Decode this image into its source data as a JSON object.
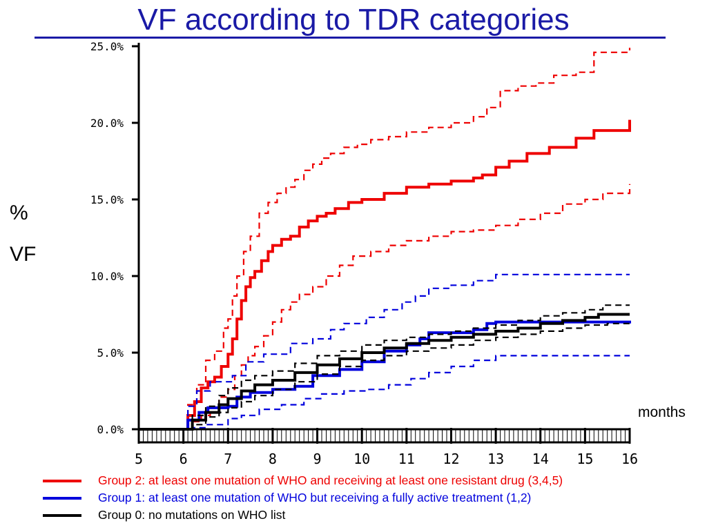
{
  "page": {
    "title": "VF according to TDR categories",
    "y_symbol": "%",
    "y_label": "VF",
    "x_unit": "months"
  },
  "colors": {
    "title": "#1a1aa6",
    "group2": "#ee0000",
    "group1": "#0000dd",
    "group0": "#000000"
  },
  "legend": [
    {
      "label": "Group 2: at least one mutation of WHO and receiving at least one resistant drug (3,4,5)",
      "color": "#ee0000"
    },
    {
      "label": "Group 1: at least one mutation of WHO but receiving a fully active treatment (1,2)",
      "color": "#0000dd"
    },
    {
      "label": "Group 0: no mutations on WHO list",
      "color": "#000000"
    }
  ],
  "chart_data": {
    "type": "line",
    "xlabel": "months",
    "ylabel": "% VF",
    "xlim": [
      5,
      16
    ],
    "ylim": [
      0,
      25
    ],
    "x_ticks": [
      5,
      6,
      7,
      8,
      9,
      10,
      11,
      12,
      13,
      14,
      15,
      16
    ],
    "x_tick_labels": [
      "5",
      "6",
      "7",
      "8",
      "9",
      "10",
      "11",
      "12",
      "13",
      "14",
      "15",
      "16"
    ],
    "y_ticks": [
      0,
      5,
      10,
      15,
      20,
      25
    ],
    "y_tick_labels": [
      "0.0%",
      "5.0%",
      "10.0%",
      "15.0%",
      "20.0%",
      "25.0%"
    ],
    "grid": false,
    "series": [
      {
        "name": "Group 2: at least one mutation of WHO and receiving at least one resistant drug (3,4,5)",
        "group": "group2",
        "kind": "estimate",
        "x": [
          5,
          6.0,
          6.1,
          6.25,
          6.4,
          6.55,
          6.7,
          6.85,
          7.0,
          7.1,
          7.2,
          7.3,
          7.4,
          7.5,
          7.6,
          7.75,
          7.9,
          8.0,
          8.2,
          8.4,
          8.6,
          8.8,
          9.0,
          9.2,
          9.4,
          9.7,
          10.0,
          10.5,
          11.0,
          11.5,
          12.0,
          12.5,
          12.7,
          13.0,
          13.3,
          13.7,
          14.2,
          14.8,
          15.2,
          16.0
        ],
        "y": [
          0,
          0,
          0.9,
          1.8,
          2.7,
          3.1,
          3.4,
          4.1,
          4.9,
          5.9,
          7.2,
          8.4,
          9.3,
          9.9,
          10.3,
          11.0,
          11.6,
          12.0,
          12.4,
          12.6,
          13.2,
          13.6,
          13.9,
          14.1,
          14.4,
          14.8,
          15.0,
          15.4,
          15.8,
          16.0,
          16.2,
          16.4,
          16.6,
          17.1,
          17.5,
          18.0,
          18.4,
          19.0,
          19.5,
          20.2
        ]
      },
      {
        "name": "",
        "group": "group2",
        "kind": "ci",
        "x": [
          5,
          6.0,
          6.1,
          6.3,
          6.5,
          6.7,
          6.9,
          7.0,
          7.1,
          7.2,
          7.35,
          7.5,
          7.7,
          7.9,
          8.1,
          8.3,
          8.5,
          8.7,
          8.9,
          9.1,
          9.3,
          9.6,
          9.9,
          10.2,
          10.6,
          11.0,
          11.5,
          12.0,
          12.5,
          12.8,
          13.1,
          13.5,
          13.9,
          14.3,
          14.8,
          15.2,
          16.0
        ],
        "y": [
          0,
          0,
          1.6,
          2.9,
          4.5,
          5.1,
          6.6,
          7.2,
          8.7,
          10.0,
          11.6,
          12.6,
          14.1,
          14.8,
          15.4,
          15.8,
          16.3,
          16.9,
          17.3,
          17.7,
          18.0,
          18.4,
          18.6,
          18.9,
          19.1,
          19.4,
          19.7,
          20.0,
          20.4,
          21.0,
          22.1,
          22.4,
          22.6,
          23.1,
          23.3,
          24.6,
          24.9
        ]
      },
      {
        "name": "",
        "group": "group2",
        "kind": "ci",
        "x": [
          5,
          6.0,
          6.2,
          6.4,
          6.6,
          6.8,
          7.0,
          7.15,
          7.3,
          7.45,
          7.6,
          7.8,
          8.0,
          8.2,
          8.4,
          8.6,
          8.9,
          9.2,
          9.5,
          9.8,
          10.2,
          10.6,
          11.0,
          11.5,
          12.0,
          12.5,
          13.0,
          13.5,
          14.0,
          14.5,
          15.0,
          15.4,
          16.0
        ],
        "y": [
          0,
          0,
          0.5,
          0.9,
          1.4,
          2.1,
          2.6,
          3.5,
          4.2,
          4.8,
          5.4,
          6.1,
          7.0,
          7.8,
          8.3,
          8.8,
          9.3,
          10.0,
          10.7,
          11.3,
          11.6,
          12.0,
          12.3,
          12.6,
          12.9,
          13.0,
          13.3,
          13.7,
          14.1,
          14.7,
          15.0,
          15.4,
          16.0
        ]
      },
      {
        "name": "Group 1: at least one mutation of WHO but receiving a fully active treatment (1,2)",
        "group": "group1",
        "kind": "estimate",
        "x": [
          5,
          6.0,
          6.1,
          6.35,
          6.55,
          7.0,
          7.2,
          7.5,
          8.0,
          8.5,
          8.9,
          9.5,
          10.0,
          10.5,
          11.0,
          11.3,
          11.5,
          12.0,
          12.5,
          12.8,
          13.0,
          14.0,
          15.0,
          16.0
        ],
        "y": [
          0,
          0,
          0.6,
          1.1,
          1.4,
          1.5,
          2.1,
          2.4,
          2.6,
          2.8,
          3.5,
          3.9,
          4.4,
          5.1,
          5.5,
          5.9,
          6.3,
          6.3,
          6.5,
          6.9,
          7.0,
          7.0,
          7.0,
          6.9
        ]
      },
      {
        "name": "",
        "group": "group1",
        "kind": "ci",
        "x": [
          5,
          6.0,
          6.1,
          6.3,
          6.6,
          7.1,
          7.4,
          7.8,
          8.4,
          8.9,
          9.3,
          9.6,
          10.1,
          10.5,
          10.9,
          11.2,
          11.5,
          12.0,
          12.5,
          13.0,
          14.0,
          15.0,
          16.0
        ],
        "y": [
          0,
          0,
          1.5,
          2.5,
          3.1,
          3.5,
          4.4,
          4.9,
          5.6,
          5.9,
          6.5,
          6.9,
          7.3,
          7.8,
          8.3,
          8.7,
          9.2,
          9.4,
          9.7,
          10.1,
          10.1,
          10.1,
          10.1
        ]
      },
      {
        "name": "",
        "group": "group1",
        "kind": "ci",
        "x": [
          5,
          6.0,
          6.2,
          6.5,
          7.0,
          7.3,
          7.7,
          8.2,
          8.7,
          9.1,
          9.6,
          10.1,
          10.6,
          11.1,
          11.5,
          12.0,
          12.5,
          13.0,
          14.0,
          15.0,
          16.0
        ],
        "y": [
          0,
          0,
          0.1,
          0.3,
          0.7,
          0.9,
          1.3,
          1.6,
          2.0,
          2.3,
          2.5,
          2.6,
          2.9,
          3.3,
          3.7,
          4.1,
          4.5,
          4.8,
          4.8,
          4.8,
          4.8
        ]
      },
      {
        "name": "Group 0: no mutations on WHO list",
        "group": "group0",
        "kind": "estimate",
        "x": [
          5,
          6.0,
          6.2,
          6.5,
          6.8,
          7.0,
          7.3,
          7.6,
          8.0,
          8.5,
          9.0,
          9.5,
          10.0,
          10.5,
          11.0,
          11.5,
          12.0,
          12.5,
          13.0,
          13.5,
          14.0,
          14.5,
          15.0,
          15.3,
          16.0
        ],
        "y": [
          0,
          0,
          0.6,
          1.1,
          1.6,
          2.0,
          2.5,
          2.9,
          3.2,
          3.7,
          4.2,
          4.6,
          5.0,
          5.3,
          5.6,
          5.8,
          6.0,
          6.2,
          6.4,
          6.6,
          6.9,
          7.1,
          7.3,
          7.5,
          7.5
        ]
      },
      {
        "name": "",
        "group": "group0",
        "kind": "ci",
        "x": [
          5,
          6.0,
          6.2,
          6.5,
          6.8,
          7.0,
          7.3,
          7.6,
          8.0,
          8.5,
          9.0,
          9.5,
          10.0,
          10.5,
          11.0,
          11.5,
          12.0,
          12.5,
          13.0,
          13.5,
          14.0,
          14.5,
          15.0,
          15.4,
          16.0
        ],
        "y": [
          0,
          0,
          0.9,
          1.5,
          2.2,
          2.7,
          3.2,
          3.5,
          3.8,
          4.3,
          4.8,
          5.1,
          5.5,
          5.8,
          6.0,
          6.2,
          6.4,
          6.6,
          6.8,
          7.1,
          7.4,
          7.6,
          7.8,
          8.1,
          8.1
        ]
      },
      {
        "name": "",
        "group": "group0",
        "kind": "ci",
        "x": [
          5,
          6.0,
          6.2,
          6.5,
          6.8,
          7.0,
          7.3,
          7.6,
          8.0,
          8.5,
          9.0,
          9.5,
          10.0,
          10.5,
          11.0,
          11.5,
          12.0,
          12.5,
          13.0,
          13.5,
          14.0,
          14.5,
          15.0,
          15.5,
          16.0
        ],
        "y": [
          0,
          0,
          0.3,
          0.8,
          1.1,
          1.4,
          1.8,
          2.2,
          2.6,
          3.1,
          3.6,
          4.1,
          4.5,
          4.8,
          5.1,
          5.3,
          5.5,
          5.8,
          6.0,
          6.2,
          6.4,
          6.6,
          6.8,
          6.9,
          7.0
        ]
      }
    ]
  }
}
